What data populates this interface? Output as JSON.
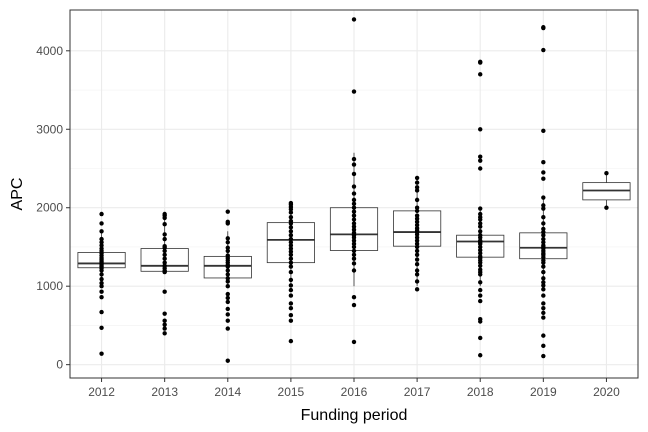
{
  "chart_data": {
    "type": "box",
    "xlabel": "Funding period",
    "ylabel": "APC",
    "categories": [
      "2012",
      "2013",
      "2014",
      "2015",
      "2016",
      "2017",
      "2018",
      "2019",
      "2020"
    ],
    "ylim": [
      -170,
      4520
    ],
    "yticks": [
      0,
      1000,
      2000,
      3000,
      4000
    ],
    "yticks_minor": [
      500,
      1500,
      2500,
      3500
    ],
    "grid": true,
    "boxes": [
      {
        "category": "2012",
        "q1": 1235,
        "median": 1290,
        "q3": 1430,
        "whisker_low": 1000,
        "whisker_high": 1700
      },
      {
        "category": "2013",
        "q1": 1190,
        "median": 1260,
        "q3": 1480,
        "whisker_low": 1180,
        "whisker_high": 1920
      },
      {
        "category": "2014",
        "q1": 1105,
        "median": 1260,
        "q3": 1380,
        "whisker_low": 1000,
        "whisker_high": 1700
      },
      {
        "category": "2015",
        "q1": 1300,
        "median": 1590,
        "q3": 1810,
        "whisker_low": 1000,
        "whisker_high": 2060
      },
      {
        "category": "2016",
        "q1": 1455,
        "median": 1660,
        "q3": 2000,
        "whisker_low": 1000,
        "whisker_high": 2700
      },
      {
        "category": "2017",
        "q1": 1510,
        "median": 1690,
        "q3": 1960,
        "whisker_low": 1000,
        "whisker_high": 2370
      },
      {
        "category": "2018",
        "q1": 1370,
        "median": 1570,
        "q3": 1650,
        "whisker_low": 1000,
        "whisker_high": 1990
      },
      {
        "category": "2019",
        "q1": 1350,
        "median": 1490,
        "q3": 1680,
        "whisker_low": 1000,
        "whisker_high": 2130
      },
      {
        "category": "2020",
        "q1": 2100,
        "median": 2220,
        "q3": 2320,
        "whisker_low": 2000,
        "whisker_high": 2440
      }
    ],
    "points": [
      {
        "category": "2012",
        "values": [
          1920,
          1800,
          1700,
          1600,
          1560,
          1520,
          1480,
          1450,
          1420,
          1390,
          1360,
          1340,
          1320,
          1300,
          1290,
          1270,
          1250,
          1230,
          1200,
          1150,
          1090,
          1040,
          1000,
          930,
          860,
          670,
          470,
          140
        ]
      },
      {
        "category": "2013",
        "values": [
          1920,
          1900,
          1870,
          1790,
          1660,
          1600,
          1510,
          1490,
          1450,
          1400,
          1350,
          1300,
          1260,
          1230,
          1200,
          1190,
          1180,
          930,
          650,
          560,
          510,
          460,
          400
        ]
      },
      {
        "category": "2014",
        "values": [
          1950,
          1820,
          1800,
          1610,
          1560,
          1490,
          1450,
          1390,
          1360,
          1330,
          1300,
          1270,
          1250,
          1200,
          1150,
          1100,
          1060,
          1000,
          900,
          850,
          800,
          710,
          640,
          560,
          460,
          50
        ]
      },
      {
        "category": "2015",
        "values": [
          2060,
          2040,
          2010,
          1980,
          1940,
          1880,
          1830,
          1800,
          1750,
          1700,
          1650,
          1600,
          1560,
          1520,
          1480,
          1440,
          1400,
          1350,
          1300,
          1250,
          1180,
          1080,
          1010,
          950,
          880,
          780,
          720,
          630,
          560,
          300
        ]
      },
      {
        "category": "2016",
        "values": [
          4400,
          3480,
          2620,
          2550,
          2430,
          2270,
          2180,
          2100,
          2050,
          2000,
          1950,
          1900,
          1850,
          1800,
          1760,
          1720,
          1680,
          1650,
          1620,
          1580,
          1540,
          1500,
          1450,
          1400,
          1350,
          1290,
          1200,
          860,
          760,
          290
        ]
      },
      {
        "category": "2017",
        "values": [
          2380,
          2320,
          2260,
          2220,
          2100,
          2000,
          1960,
          1900,
          1860,
          1820,
          1780,
          1740,
          1710,
          1690,
          1660,
          1620,
          1580,
          1540,
          1500,
          1450,
          1400,
          1340,
          1280,
          1200,
          1150,
          1060,
          960
        ]
      },
      {
        "category": "2018",
        "values": [
          3860,
          3850,
          3700,
          3000,
          2650,
          2600,
          2500,
          1990,
          1920,
          1880,
          1850,
          1800,
          1760,
          1700,
          1650,
          1620,
          1580,
          1560,
          1540,
          1500,
          1460,
          1420,
          1380,
          1360,
          1330,
          1300,
          1260,
          1210,
          1180,
          1150,
          1050,
          950,
          880,
          810,
          580,
          550,
          340,
          120
        ]
      },
      {
        "category": "2019",
        "values": [
          4300,
          4290,
          4010,
          2980,
          2580,
          2450,
          2370,
          2130,
          2030,
          1990,
          1880,
          1800,
          1730,
          1690,
          1650,
          1600,
          1560,
          1520,
          1500,
          1480,
          1450,
          1420,
          1400,
          1370,
          1330,
          1300,
          1250,
          1180,
          1100,
          1050,
          1010,
          960,
          880,
          780,
          720,
          660,
          600,
          370,
          240,
          110
        ]
      },
      {
        "category": "2020",
        "values": [
          2440,
          2000
        ]
      }
    ]
  }
}
